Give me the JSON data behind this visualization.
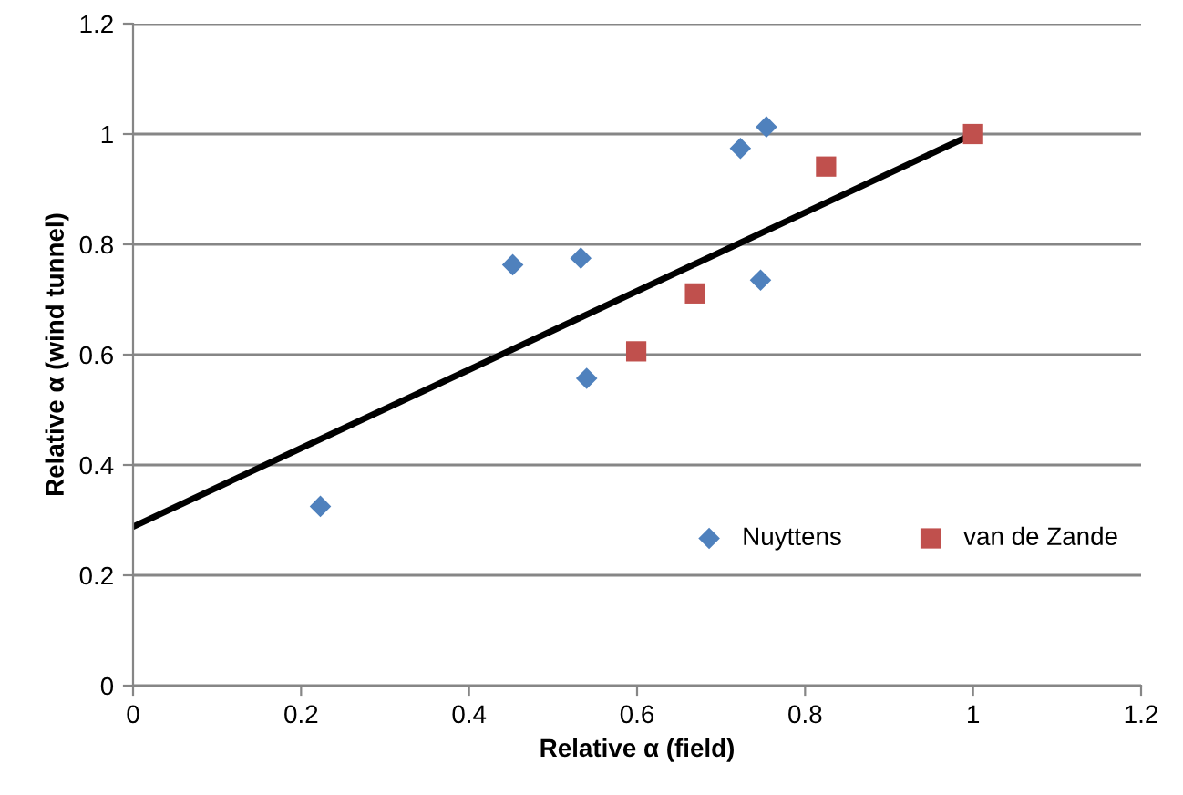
{
  "chart_data": {
    "type": "scatter",
    "xlabel": "Relative α (field)",
    "ylabel": "Relative α (wind tunnel)",
    "xlim": [
      0,
      1.2
    ],
    "xticks": [
      0,
      0.2,
      0.4,
      0.6,
      0.8,
      1,
      1.2
    ],
    "ylim": [
      0,
      1.2
    ],
    "yticks": [
      0,
      0.2,
      0.4,
      0.6,
      0.8,
      1,
      1.2
    ],
    "grid": "y",
    "legend": "bottom right",
    "series": [
      {
        "name": "Nuyttens",
        "marker": "diamond",
        "color": "#4f81bd",
        "x": [
          0.223,
          0.452,
          0.533,
          0.54,
          0.723,
          0.754,
          0.747
        ],
        "values": [
          0.325,
          0.763,
          0.775,
          0.557,
          0.974,
          1.013,
          0.735
        ]
      },
      {
        "name": "van de Zande",
        "marker": "square",
        "color": "#c0504d",
        "x": [
          0.599,
          0.669,
          0.825,
          1
        ],
        "values": [
          0.606,
          0.711,
          0.941,
          1
        ]
      },
      {
        "type": "line",
        "marker": "none",
        "line_style": "solid",
        "color": "#000000",
        "x": [
          0,
          1
        ],
        "values": [
          0.288,
          1
        ]
      }
    ]
  }
}
